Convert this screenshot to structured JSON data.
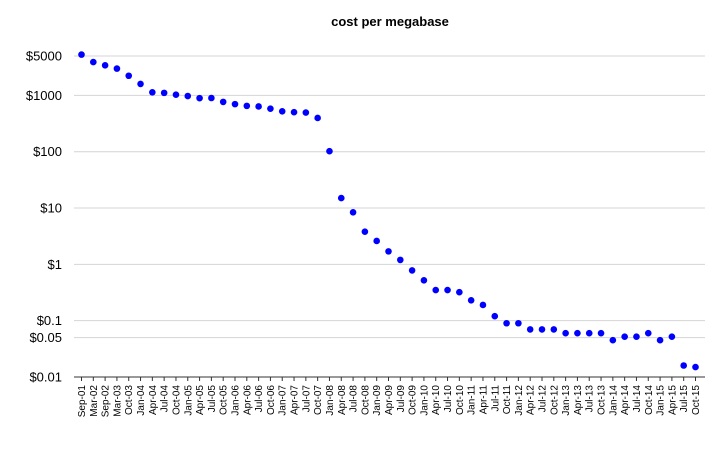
{
  "chart_data": {
    "type": "scatter",
    "title": "cost per megabase",
    "xlabel": "",
    "ylabel": "",
    "y_scale": "log",
    "ylim": [
      0.01,
      7000
    ],
    "y_ticks": [
      {
        "value": 5000,
        "label": "$5000"
      },
      {
        "value": 1000,
        "label": "$1000"
      },
      {
        "value": 100,
        "label": "$100"
      },
      {
        "value": 10,
        "label": "$10"
      },
      {
        "value": 1,
        "label": "$1"
      },
      {
        "value": 0.1,
        "label": "$0.1"
      },
      {
        "value": 0.05,
        "label": "$0.05"
      },
      {
        "value": 0.01,
        "label": "$0.01"
      }
    ],
    "grid": true,
    "marker_color": "#0000ff",
    "categories": [
      "Sep-01",
      "Mar-02",
      "Sep-02",
      "Mar-03",
      "Oct-03",
      "Jan-04",
      "Apr-04",
      "Jul-04",
      "Oct-04",
      "Jan-05",
      "Apr-05",
      "Jul-05",
      "Oct-05",
      "Jan-06",
      "Apr-06",
      "Jul-06",
      "Oct-06",
      "Jan-07",
      "Apr-07",
      "Jul-07",
      "Oct-07",
      "Jan-08",
      "Apr-08",
      "Jul-08",
      "Oct-08",
      "Jan-09",
      "Apr-09",
      "Jul-09",
      "Oct-09",
      "Jan-10",
      "Apr-10",
      "Jul-10",
      "Oct-10",
      "Jan-11",
      "Apr-11",
      "Jul-11",
      "Oct-11",
      "Jan-12",
      "Apr-12",
      "Jul-12",
      "Oct-12",
      "Jan-13",
      "Apr-13",
      "Jul-13",
      "Oct-13",
      "Jan-14",
      "Apr-14",
      "Jul-14",
      "Oct-14",
      "Jan-15",
      "Apr-15",
      "Jul-15",
      "Oct-15"
    ],
    "values": [
      5292,
      3898,
      3413,
      2986,
      2230,
      1598,
      1135,
      1107,
      1028,
      974,
      893,
      898,
      766,
      699,
      651,
      636,
      581,
      522,
      502,
      496,
      397,
      102,
      15,
      8.4,
      3.8,
      2.6,
      1.7,
      1.2,
      0.78,
      0.52,
      0.35,
      0.35,
      0.32,
      0.23,
      0.19,
      0.12,
      0.09,
      0.09,
      0.07,
      0.07,
      0.07,
      0.06,
      0.06,
      0.06,
      0.06,
      0.045,
      0.052,
      0.052,
      0.06,
      0.045,
      0.052,
      0.016,
      0.015
    ]
  }
}
